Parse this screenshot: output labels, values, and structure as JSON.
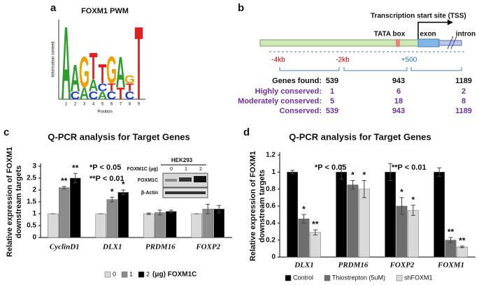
{
  "panel_a": {
    "label": "a",
    "title": "FOXM1 PWM",
    "y_label": "Information content",
    "x_label": "Position",
    "positions": [
      1,
      2,
      3,
      4,
      5,
      6,
      7,
      8,
      9
    ],
    "logo": [
      [
        {
          "letter": "A",
          "height": 1.9
        }
      ],
      [
        {
          "letter": "C",
          "height": 0.2
        },
        {
          "letter": "A",
          "height": 0.7
        }
      ],
      [
        {
          "letter": "A",
          "height": 0.3
        },
        {
          "letter": "G",
          "height": 0.8
        }
      ],
      [
        {
          "letter": "C",
          "height": 0.2
        },
        {
          "letter": "A",
          "height": 0.3
        },
        {
          "letter": "T",
          "height": 0.7
        }
      ],
      [
        {
          "letter": "A",
          "height": 0.2
        },
        {
          "letter": "C",
          "height": 0.2
        },
        {
          "letter": "T",
          "height": 0.5
        }
      ],
      [
        {
          "letter": "C",
          "height": 0.2
        },
        {
          "letter": "T",
          "height": 0.2
        },
        {
          "letter": "G",
          "height": 0.7
        }
      ],
      [
        {
          "letter": "T",
          "height": 0.3
        },
        {
          "letter": "A",
          "height": 0.8
        }
      ],
      [
        {
          "letter": "C",
          "height": 0.2
        },
        {
          "letter": "T",
          "height": 0.2
        },
        {
          "letter": "G",
          "height": 0.2
        }
      ],
      [
        {
          "letter": "T",
          "height": 1.9
        }
      ]
    ],
    "colors": {
      "A": "#2e9e2e",
      "C": "#2040d0",
      "G": "#f0a000",
      "T": "#e02020"
    },
    "ylim": [
      0,
      2
    ]
  },
  "panel_b": {
    "label": "b",
    "tss": "Transcription start site (TSS)",
    "tata": "TATA box",
    "exon": "exon",
    "intron": "intron",
    "positions": [
      "-4kb",
      "-2kb",
      "+500"
    ],
    "header": "Genes found:",
    "header_values": [
      539,
      943,
      1189
    ],
    "rows": [
      {
        "label": "Highly conserved:",
        "values": [
          1,
          6,
          2
        ]
      },
      {
        "label": "Moderately conserved:",
        "values": [
          5,
          18,
          8
        ]
      },
      {
        "label": "Conserved:",
        "values": [
          539,
          943,
          1189
        ]
      }
    ]
  },
  "chart_data": [
    {
      "type": "bar",
      "panel_label": "c",
      "title": "Q-PCR analysis for Target Genes",
      "y_label": [
        "Relative expression of FOXM1",
        "downstream targets"
      ],
      "categories": [
        "CyclinD1",
        "DLX1",
        "PRDM16",
        "FOXP2"
      ],
      "series": [
        {
          "name": "0",
          "color": "#d9d9d9",
          "values": [
            1,
            1,
            1,
            1
          ],
          "errors": [
            0,
            0,
            0.03,
            0
          ],
          "annotations": [
            null,
            null,
            null,
            null
          ]
        },
        {
          "name": "1",
          "color": "#8c8c8c",
          "values": [
            2.1,
            1.6,
            1.05,
            1.2
          ],
          "errors": [
            0.05,
            0.1,
            0.1,
            0.2
          ],
          "annotations": [
            "**",
            "*",
            null,
            null
          ]
        },
        {
          "name": "2",
          "color": "#000000",
          "values": [
            2.5,
            1.9,
            1.1,
            1.2
          ],
          "errors": [
            0.2,
            0.1,
            0.05,
            0.15
          ],
          "annotations": [
            "**",
            "*",
            null,
            null
          ]
        }
      ],
      "legend_suffix": "(μg) FOXM1C",
      "notes": [
        "*P < 0.05",
        "**P < 0.01"
      ],
      "ylim": [
        0,
        3
      ],
      "yticks": [
        0,
        0.5,
        1,
        1.5,
        2,
        2.5,
        3
      ],
      "inset": {
        "title": "HEK293",
        "dose_label": "FOXM1C (μg)",
        "doses": [
          "0",
          "1",
          "2"
        ],
        "rows": [
          "FOXM1C",
          "β-Actin"
        ]
      }
    },
    {
      "type": "bar",
      "panel_label": "d",
      "title": "Q-PCR analysis for Target Genes",
      "y_label": [
        "Relative expression of FOXM1",
        "downstream targets"
      ],
      "categories": [
        "DLX1",
        "PRDM16",
        "FOXP2",
        "FOXM1"
      ],
      "series": [
        {
          "name": "Control",
          "color": "#000000",
          "values": [
            1,
            1,
            1,
            1
          ],
          "errors": [
            0.02,
            0.08,
            0.1,
            0.05
          ],
          "annotations": [
            null,
            null,
            null,
            null
          ]
        },
        {
          "name": "Thiostrepton (5uM)",
          "color": "#6e6e6e",
          "values": [
            0.45,
            0.85,
            0.6,
            0.2
          ],
          "errors": [
            0.05,
            0.05,
            0.1,
            0.03
          ],
          "annotations": [
            "*",
            "*",
            "*",
            "**"
          ]
        },
        {
          "name": "shFOXM1",
          "color": "#d9d9d9",
          "values": [
            0.29,
            0.8,
            0.55,
            0.12
          ],
          "errors": [
            0.03,
            0.1,
            0.06,
            0.01
          ],
          "annotations": [
            "**",
            "*",
            "*",
            "**"
          ]
        }
      ],
      "notes": [
        "*P < 0.05",
        "**P < 0.01"
      ],
      "ylim": [
        0,
        1.2
      ],
      "yticks": [
        0,
        0.2,
        0.4,
        0.6,
        0.8,
        1,
        1.2
      ]
    }
  ]
}
